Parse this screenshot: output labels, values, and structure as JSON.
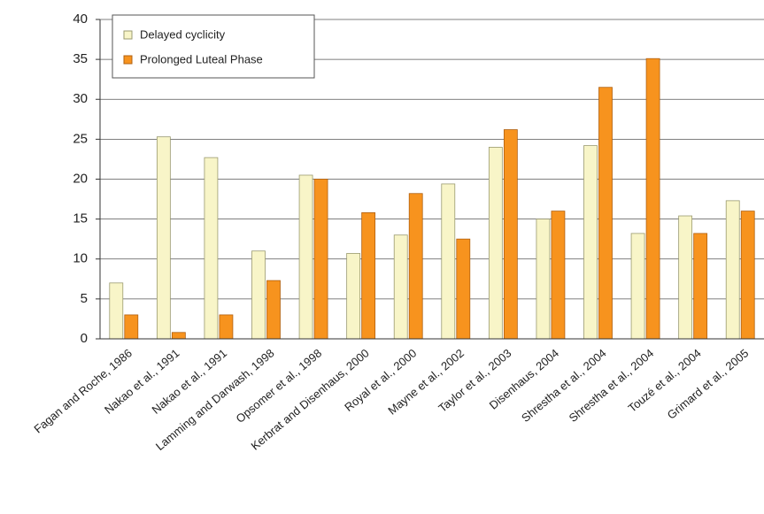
{
  "chart_data": {
    "type": "bar",
    "categories": [
      "Fagan and Roche, 1986",
      "Nakao et al., 1991",
      "Nakao et al., 1991",
      "Lamming and Darwash, 1998",
      "Opsomer et al., 1998",
      "Kerbrat and Disenhaus, 2000",
      "Royal et al., 2000",
      "Mayne et al., 2002",
      "Taylor et al., 2003",
      "Disenhaus, 2004",
      "Shrestha et al., 2004",
      "Shrestha et al., 2004",
      "Touzé et al., 2004",
      "Grimard et al., 2005"
    ],
    "series": [
      {
        "name": "Delayed cyclicity",
        "color": "#f8f5c8",
        "values": [
          7,
          25.3,
          22.7,
          11,
          20.5,
          10.7,
          13,
          19.4,
          24,
          15,
          24.2,
          13.2,
          15.4,
          17.3
        ]
      },
      {
        "name": "Prolonged Luteal Phase",
        "color": "#f7931e",
        "values": [
          3,
          0.8,
          3,
          7.3,
          20,
          15.8,
          18.2,
          12.5,
          26.2,
          16,
          31.5,
          35.1,
          13.2,
          16
        ]
      }
    ],
    "ylim": [
      0,
      40
    ],
    "yticks": [
      0,
      5,
      10,
      15,
      20,
      25,
      30,
      35,
      40
    ],
    "grid": true,
    "legend": "upper left"
  }
}
